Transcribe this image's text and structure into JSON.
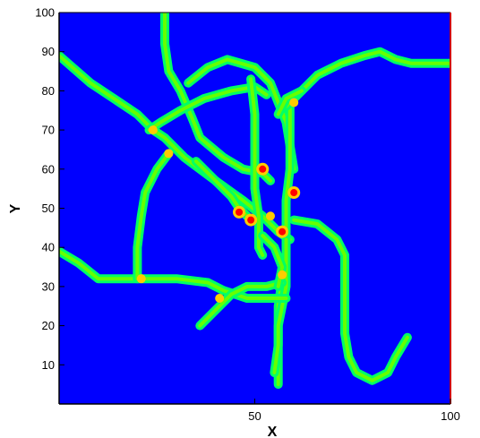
{
  "chart_data": {
    "type": "heatmap",
    "title": "",
    "xlabel": "X",
    "ylabel": "Y",
    "xlim": [
      0,
      100
    ],
    "ylim": [
      0,
      100
    ],
    "x_ticks": [
      50,
      100
    ],
    "y_ticks": [
      10,
      20,
      30,
      40,
      50,
      60,
      70,
      80,
      90,
      100
    ],
    "grid": false,
    "legend": "none",
    "colors": {
      "background": "#0000ff",
      "outer_band": "#00ff66",
      "inner_band": "#66ff00",
      "hot_medium": "#ffcc00",
      "hot_high": "#ff0000",
      "frame_right": "#cc0000"
    },
    "network_paths": [
      {
        "name": "northwest-diagonal",
        "points": [
          [
            0,
            89
          ],
          [
            8,
            82
          ],
          [
            14,
            78
          ],
          [
            20,
            74
          ],
          [
            24,
            70
          ],
          [
            27,
            68
          ],
          [
            32,
            63
          ],
          [
            40,
            57
          ],
          [
            47,
            52
          ],
          [
            52,
            48
          ],
          [
            56,
            44
          ],
          [
            59,
            42
          ]
        ]
      },
      {
        "name": "vertical-top-left",
        "points": [
          [
            27,
            100
          ],
          [
            27,
            92
          ],
          [
            28,
            85
          ],
          [
            31,
            80
          ],
          [
            34,
            73
          ],
          [
            36,
            68
          ],
          [
            42,
            63
          ],
          [
            47,
            60
          ],
          [
            52,
            59
          ],
          [
            54,
            57
          ]
        ]
      },
      {
        "name": "loop-top",
        "points": [
          [
            33,
            82
          ],
          [
            38,
            86
          ],
          [
            43,
            88
          ],
          [
            50,
            86
          ],
          [
            54,
            82
          ],
          [
            56,
            77
          ],
          [
            58,
            72
          ],
          [
            59,
            66
          ],
          [
            60,
            60
          ]
        ]
      },
      {
        "name": "left-loop",
        "points": [
          [
            23,
            70
          ],
          [
            26,
            72
          ],
          [
            31,
            75
          ],
          [
            37,
            78
          ],
          [
            44,
            80
          ],
          [
            50,
            81
          ],
          [
            53,
            79
          ]
        ]
      },
      {
        "name": "inner-vertical",
        "points": [
          [
            49,
            83
          ],
          [
            50,
            74
          ],
          [
            50,
            64
          ],
          [
            50,
            55
          ],
          [
            51,
            48
          ],
          [
            51,
            40
          ],
          [
            52,
            38
          ]
        ]
      },
      {
        "name": "hotspot-link",
        "points": [
          [
            35,
            62
          ],
          [
            40,
            57
          ],
          [
            44,
            53
          ],
          [
            46,
            50
          ],
          [
            48,
            48
          ]
        ]
      },
      {
        "name": "center-vertical",
        "points": [
          [
            59,
            77
          ],
          [
            59,
            70
          ],
          [
            59,
            60
          ],
          [
            58,
            52
          ],
          [
            58,
            45
          ],
          [
            58,
            38
          ],
          [
            57,
            32
          ],
          [
            56,
            25
          ],
          [
            56,
            18
          ],
          [
            56,
            12
          ],
          [
            56,
            5
          ]
        ]
      },
      {
        "name": "right-vertical",
        "points": [
          [
            58,
            42
          ],
          [
            58,
            36
          ],
          [
            58,
            30
          ],
          [
            57,
            25
          ],
          [
            56,
            20
          ],
          [
            56,
            15
          ],
          [
            55,
            8
          ]
        ]
      },
      {
        "name": "top-right-arc",
        "points": [
          [
            58,
            76
          ],
          [
            62,
            80
          ],
          [
            66,
            84
          ],
          [
            72,
            87
          ],
          [
            78,
            89
          ],
          [
            82,
            90
          ],
          [
            86,
            88
          ],
          [
            90,
            87
          ],
          [
            100,
            87
          ]
        ]
      },
      {
        "name": "upper-crossing",
        "points": [
          [
            56,
            74
          ],
          [
            58,
            78
          ],
          [
            62,
            80
          ]
        ]
      },
      {
        "name": "right-hook",
        "points": [
          [
            60,
            47
          ],
          [
            66,
            46
          ],
          [
            71,
            42
          ],
          [
            73,
            38
          ],
          [
            73,
            32
          ],
          [
            73,
            25
          ],
          [
            73,
            18
          ],
          [
            74,
            12
          ],
          [
            76,
            8
          ],
          [
            80,
            6
          ],
          [
            84,
            8
          ],
          [
            86,
            12
          ],
          [
            89,
            17
          ]
        ]
      },
      {
        "name": "left-bottom-horizontal",
        "points": [
          [
            0,
            39
          ],
          [
            5,
            36
          ],
          [
            10,
            32
          ],
          [
            20,
            32
          ],
          [
            30,
            32
          ],
          [
            38,
            31
          ],
          [
            42,
            29
          ],
          [
            48,
            27
          ],
          [
            55,
            27
          ],
          [
            58,
            27
          ]
        ]
      },
      {
        "name": "left-vertical",
        "points": [
          [
            20,
            32
          ],
          [
            20,
            40
          ],
          [
            21,
            48
          ],
          [
            22,
            54
          ],
          [
            25,
            60
          ],
          [
            28,
            64
          ]
        ]
      },
      {
        "name": "lower-diagonal",
        "points": [
          [
            36,
            20
          ],
          [
            40,
            24
          ],
          [
            44,
            28
          ],
          [
            48,
            30
          ],
          [
            53,
            30
          ],
          [
            57,
            31
          ]
        ]
      },
      {
        "name": "center-south-branch",
        "points": [
          [
            52,
            43
          ],
          [
            55,
            40
          ],
          [
            57,
            35
          ],
          [
            56,
            30
          ]
        ]
      }
    ],
    "hotspots": [
      {
        "x": 46,
        "y": 49,
        "level": "high"
      },
      {
        "x": 54,
        "y": 48,
        "level": "medium"
      },
      {
        "x": 57,
        "y": 44,
        "level": "high"
      },
      {
        "x": 49,
        "y": 47,
        "level": "high"
      },
      {
        "x": 24,
        "y": 70,
        "level": "medium"
      },
      {
        "x": 28,
        "y": 64,
        "level": "medium"
      },
      {
        "x": 21,
        "y": 32,
        "level": "medium"
      },
      {
        "x": 41,
        "y": 27,
        "level": "medium"
      },
      {
        "x": 57,
        "y": 33,
        "level": "medium"
      },
      {
        "x": 60,
        "y": 54,
        "level": "high"
      },
      {
        "x": 52,
        "y": 60,
        "level": "high"
      },
      {
        "x": 60,
        "y": 77,
        "level": "medium"
      }
    ]
  }
}
